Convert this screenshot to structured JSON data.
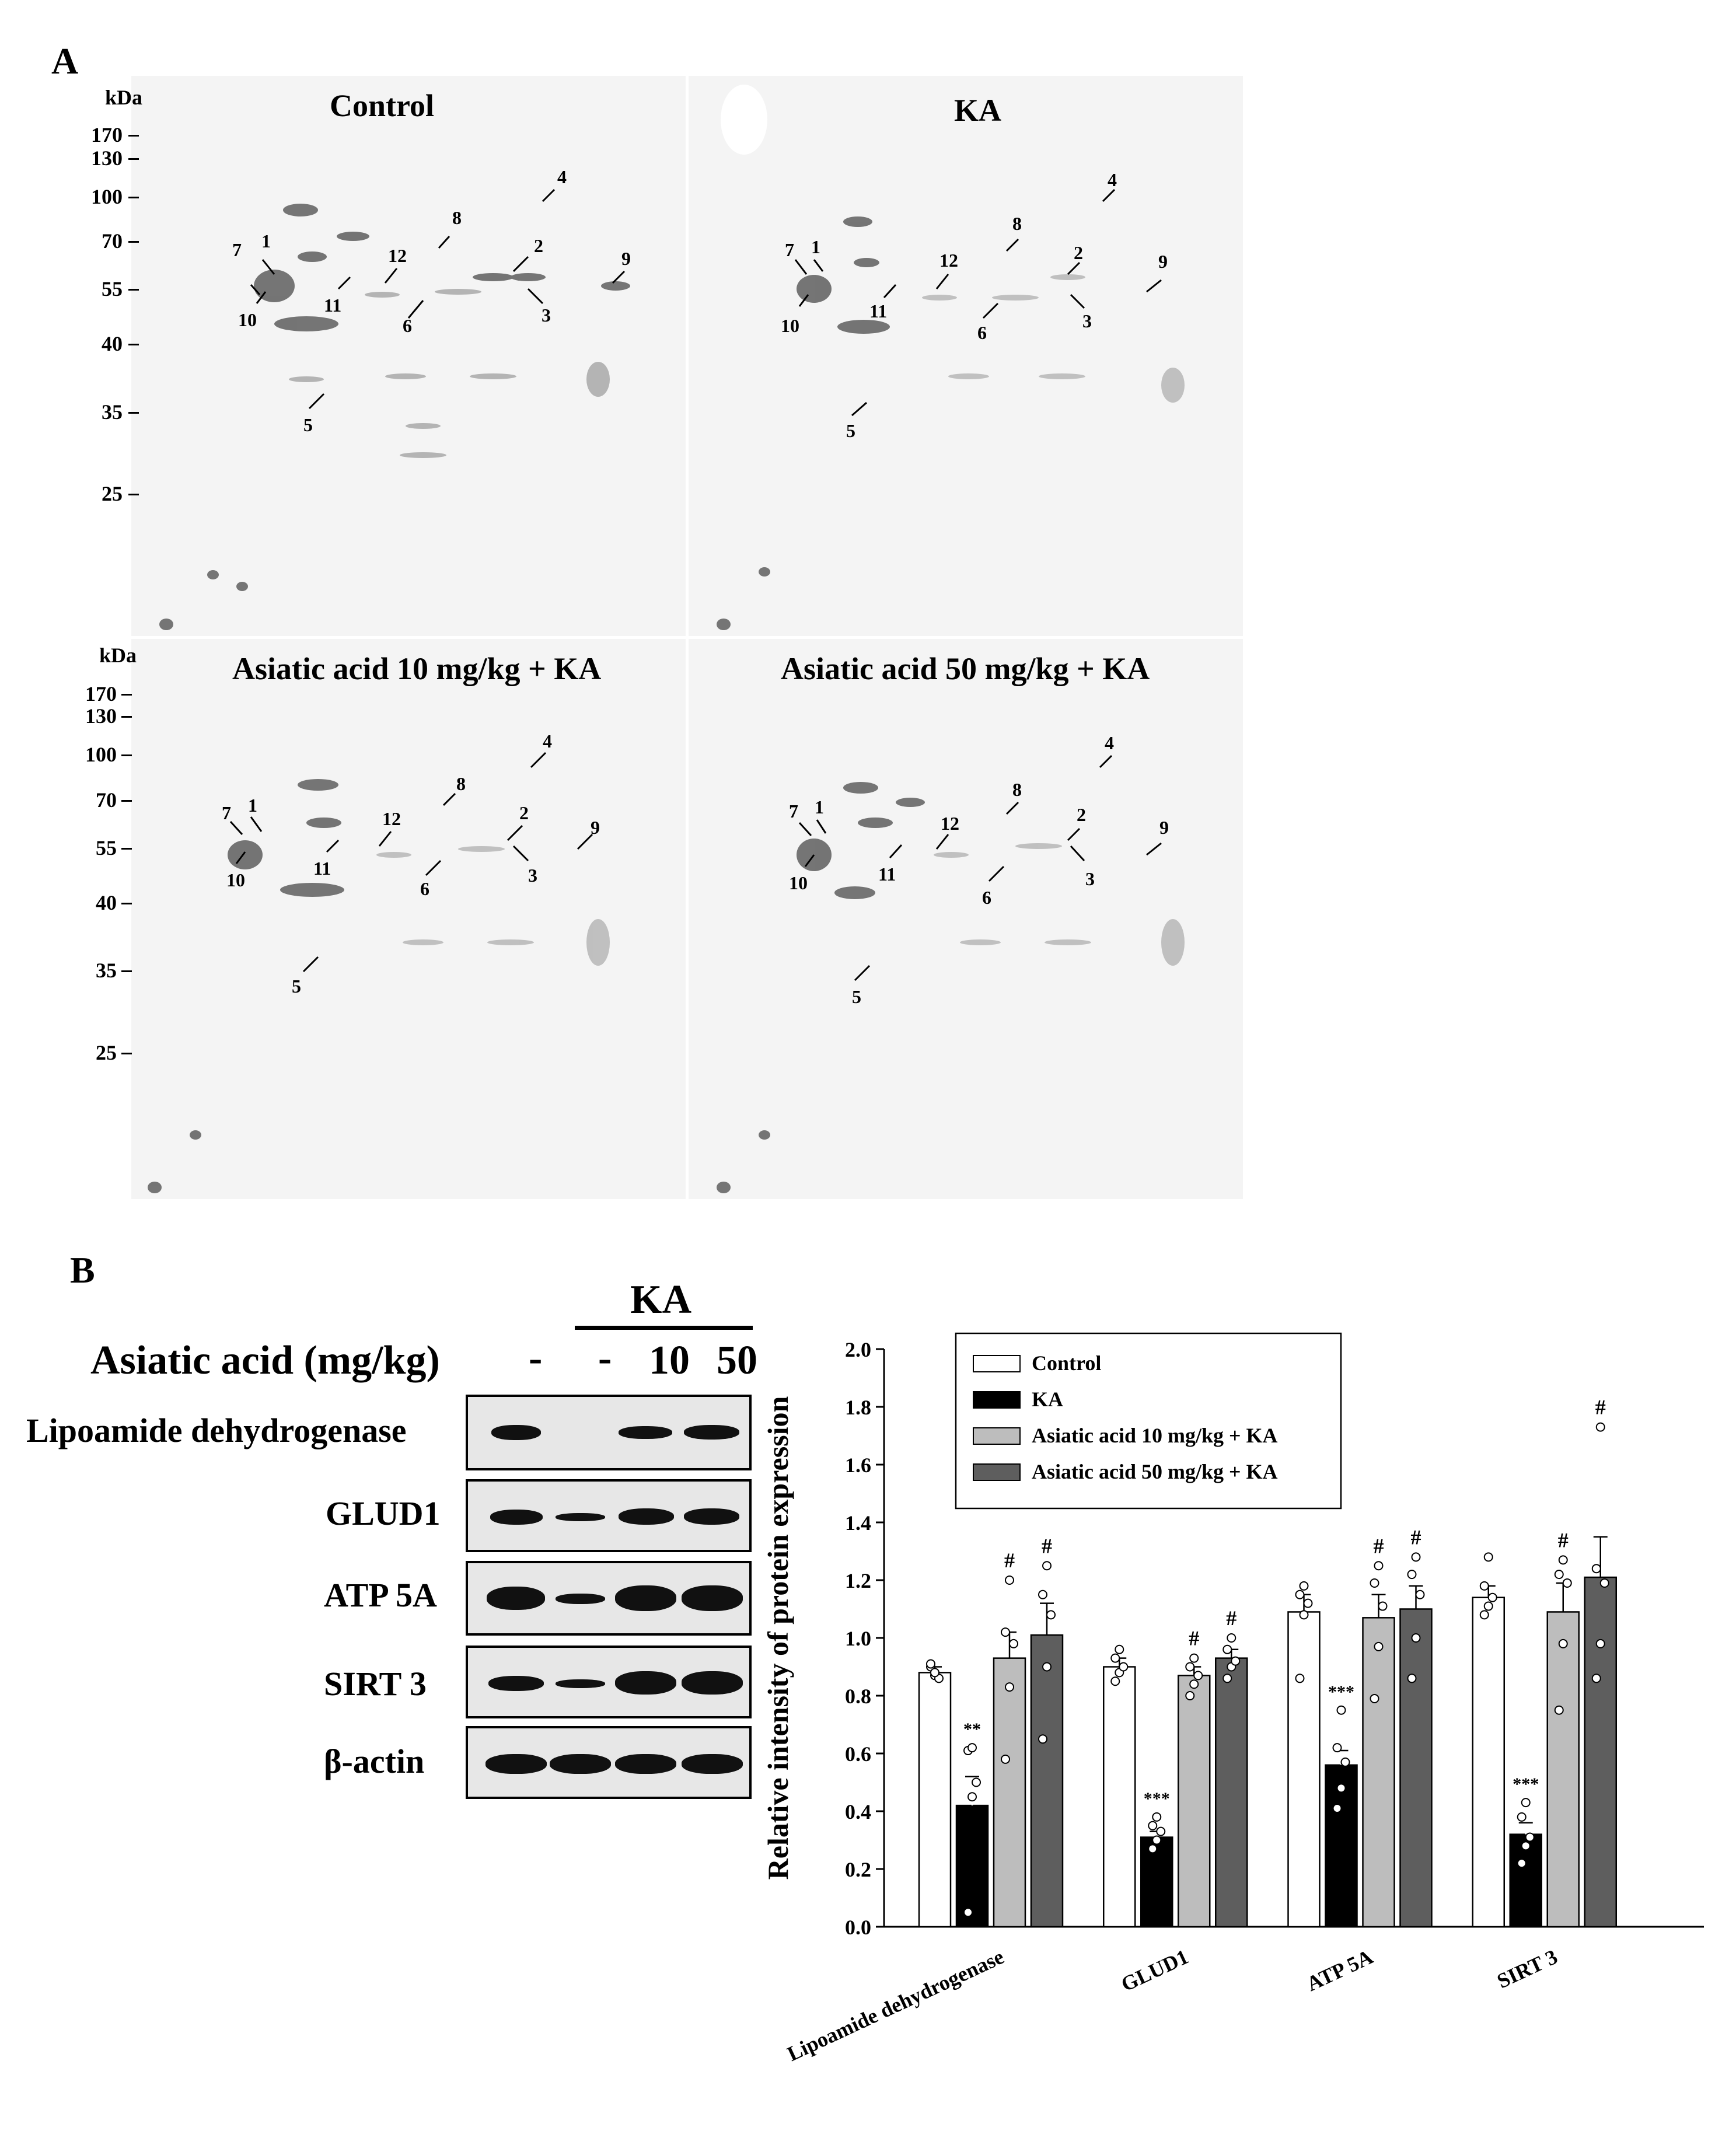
{
  "panel_a": {
    "letter": "A",
    "unit_label": "kDa",
    "mw_markers": [
      "170",
      "130",
      "100",
      "70",
      "55",
      "40",
      "35",
      "25"
    ],
    "gels": [
      {
        "title": "Control"
      },
      {
        "title": "KA"
      },
      {
        "title": "Asiatic acid 10 mg/kg + KA"
      },
      {
        "title": "Asiatic acid 50 mg/kg + KA"
      }
    ],
    "spot_numbers": [
      "1",
      "2",
      "3",
      "4",
      "5",
      "6",
      "7",
      "8",
      "9",
      "10",
      "11",
      "12"
    ]
  },
  "panel_b": {
    "letter": "B",
    "header_ka": "KA",
    "dose_label": "Asiatic acid (mg/kg)",
    "dose_values": [
      "-",
      "-",
      "10",
      "50"
    ],
    "blot_labels": [
      "Lipoamide dehydrogenase",
      "GLUD1",
      "ATP 5A",
      "SIRT 3",
      "β-actin"
    ]
  },
  "chart_data": {
    "type": "bar",
    "title": "",
    "xlabel": "",
    "ylabel": "Relative intensity of protein expression",
    "ylim": [
      0.0,
      2.0
    ],
    "yticks": [
      "0.0",
      "0.2",
      "0.4",
      "0.6",
      "0.8",
      "1.0",
      "1.2",
      "1.4",
      "1.6",
      "1.8",
      "2.0"
    ],
    "categories": [
      "Lipoamide dehydrogenase",
      "GLUD1",
      "ATP 5A",
      "SIRT 3"
    ],
    "series": [
      {
        "name": "Control",
        "color": "#ffffff",
        "values": [
          0.88,
          0.9,
          1.09,
          1.14
        ],
        "sem": [
          0.02,
          0.03,
          0.06,
          0.04
        ],
        "significance": [
          "",
          "",
          "",
          ""
        ]
      },
      {
        "name": "KA",
        "color": "#000000",
        "values": [
          0.42,
          0.31,
          0.56,
          0.32
        ],
        "sem": [
          0.1,
          0.02,
          0.05,
          0.04
        ],
        "significance": [
          "**",
          "***",
          "***",
          "***"
        ]
      },
      {
        "name": "Asiatic acid 10 mg/kg + KA",
        "color": "#bdbdbd",
        "values": [
          0.93,
          0.87,
          1.07,
          1.09
        ],
        "sem": [
          0.09,
          0.03,
          0.08,
          0.1
        ],
        "significance": [
          "#",
          "#",
          "#",
          "#"
        ]
      },
      {
        "name": "Asiatic acid 50 mg/kg + KA",
        "color": "#5e5e5e",
        "values": [
          1.01,
          0.93,
          1.1,
          1.21
        ],
        "sem": [
          0.11,
          0.03,
          0.08,
          0.14
        ],
        "significance": [
          "#",
          "#",
          "#",
          "#"
        ]
      }
    ],
    "points": [
      [
        [
          0.9,
          0.87,
          0.86,
          0.91,
          0.88
        ],
        [
          0.05,
          0.45,
          0.5,
          0.61,
          0.62
        ],
        [
          0.58,
          0.83,
          0.98,
          1.02,
          1.2
        ],
        [
          0.65,
          0.9,
          1.08,
          1.15,
          1.25
        ]
      ],
      [
        [
          0.85,
          0.88,
          0.9,
          0.93,
          0.96
        ],
        [
          0.27,
          0.3,
          0.33,
          0.35,
          0.38
        ],
        [
          0.8,
          0.84,
          0.87,
          0.9,
          0.93
        ],
        [
          0.86,
          0.9,
          0.92,
          0.96,
          1.0
        ]
      ],
      [
        [
          0.86,
          1.08,
          1.12,
          1.15,
          1.18
        ],
        [
          0.41,
          0.48,
          0.57,
          0.62,
          0.75
        ],
        [
          0.79,
          0.97,
          1.11,
          1.19,
          1.25
        ],
        [
          0.86,
          1.0,
          1.15,
          1.22,
          1.28
        ]
      ],
      [
        [
          1.08,
          1.11,
          1.14,
          1.18,
          1.28
        ],
        [
          0.22,
          0.28,
          0.31,
          0.38,
          0.43
        ],
        [
          0.75,
          0.98,
          1.19,
          1.22,
          1.27
        ],
        [
          0.86,
          0.98,
          1.19,
          1.24,
          1.73
        ]
      ]
    ],
    "legend_position": "top"
  }
}
